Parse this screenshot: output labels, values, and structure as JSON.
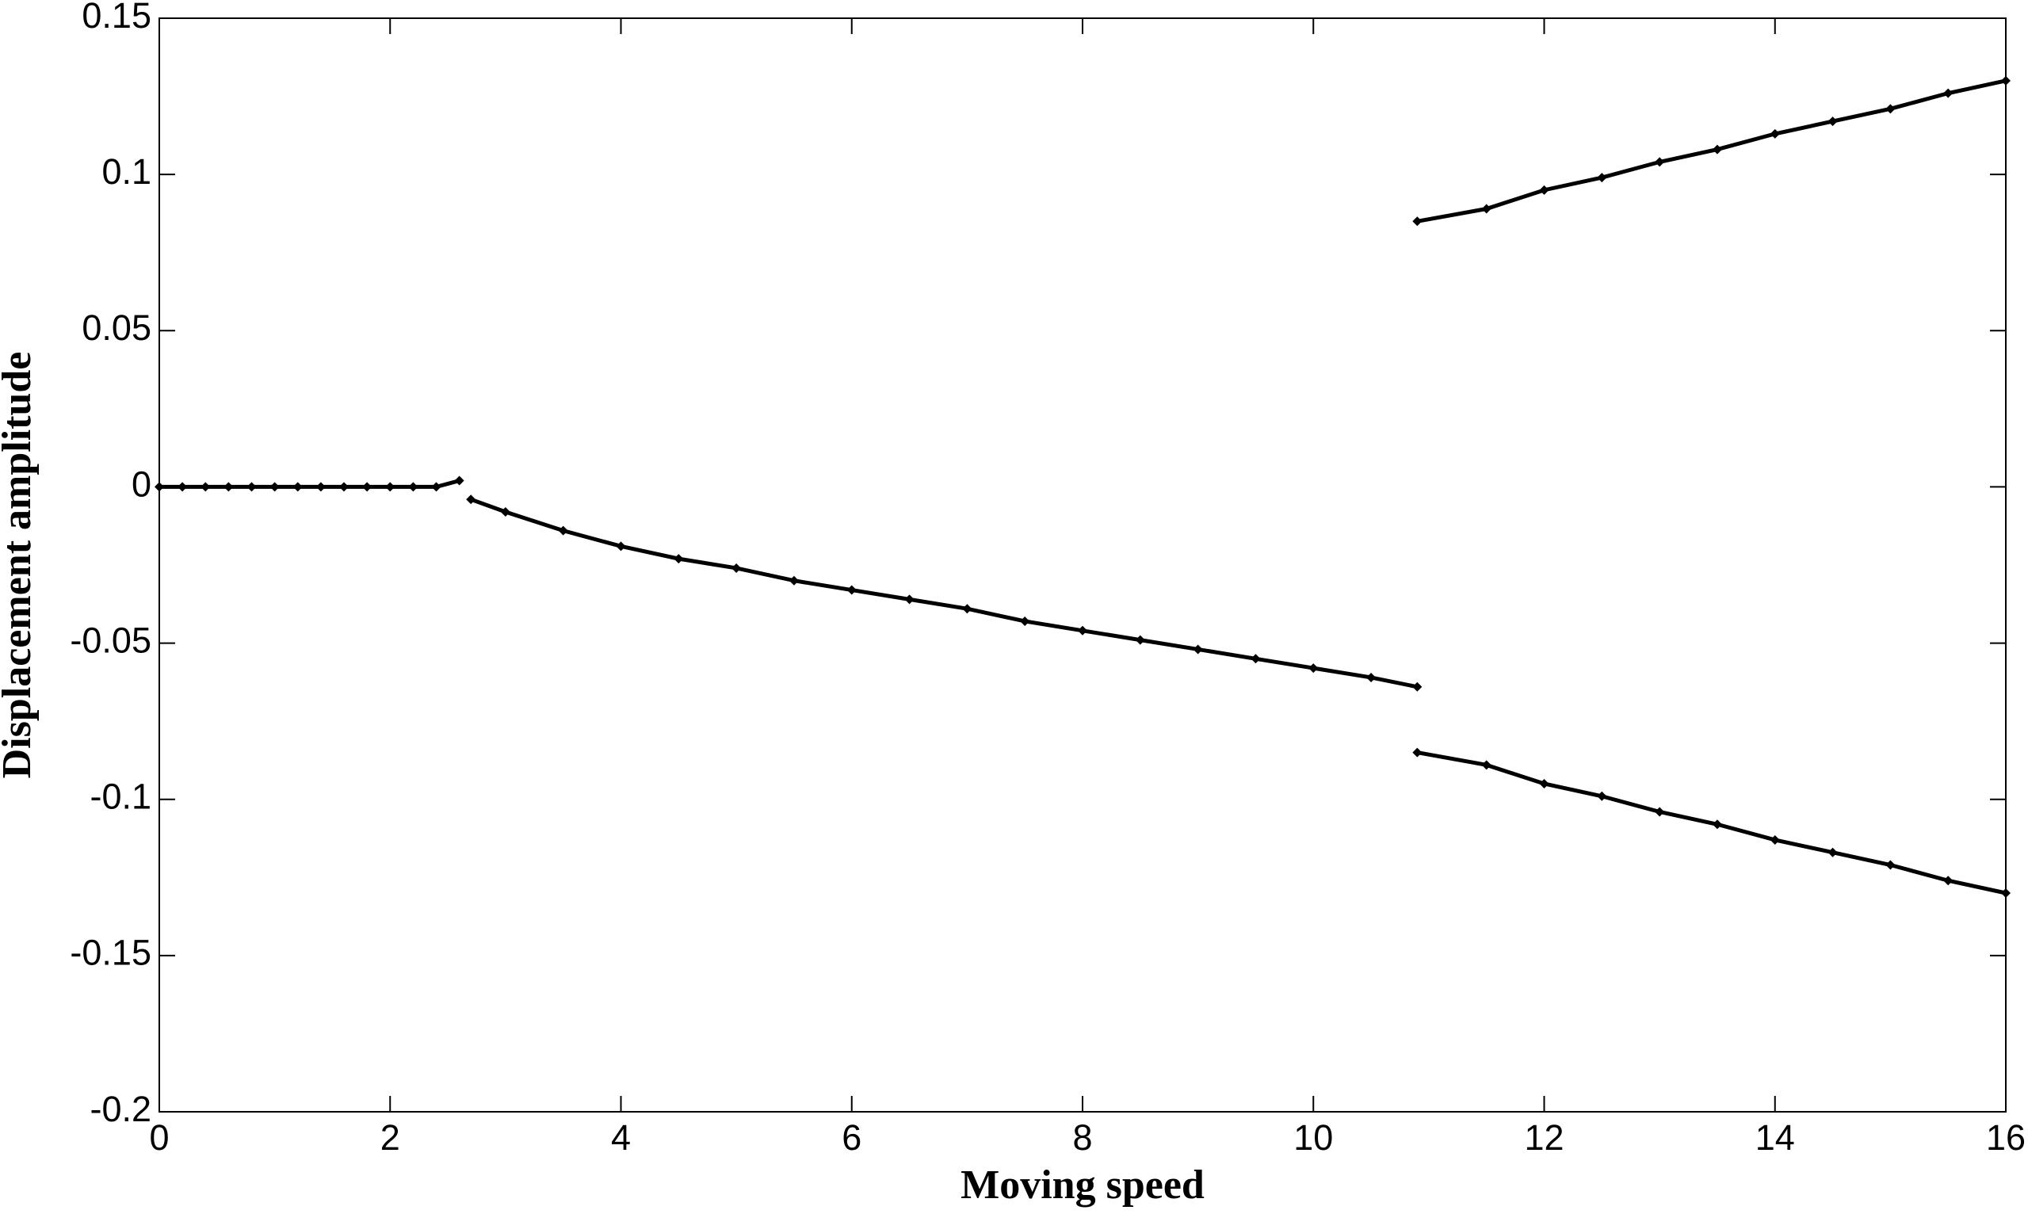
{
  "chart_data": {
    "type": "line",
    "xlabel": "Moving speed",
    "ylabel": "Displacement amplitude",
    "xlim": [
      0,
      16
    ],
    "xticks": [
      0,
      2,
      4,
      6,
      8,
      10,
      12,
      14,
      16
    ],
    "ylim": [
      -0.2,
      0.15
    ],
    "yticks": [
      -0.2,
      -0.15,
      -0.1,
      -0.05,
      0,
      0.05,
      0.1,
      0.15
    ],
    "grid": false,
    "series": [
      {
        "color": "#000000",
        "x": [
          0,
          0.2,
          0.4,
          0.6,
          0.8,
          1.0,
          1.2,
          1.4,
          1.6,
          1.8,
          2.0,
          2.2,
          2.4,
          2.6
        ],
        "values": [
          0,
          0,
          0,
          0,
          0,
          0,
          0,
          0,
          0,
          0,
          0,
          0,
          0,
          0.002
        ]
      },
      {
        "color": "#000000",
        "x": [
          2.7,
          3.0,
          3.5,
          4,
          4.5,
          5,
          5.5,
          6,
          6.5,
          7,
          7.5,
          8,
          8.5,
          9,
          9.5,
          10,
          10.5,
          10.9
        ],
        "values": [
          -0.004,
          -0.008,
          -0.014,
          -0.019,
          -0.023,
          -0.026,
          -0.03,
          -0.033,
          -0.036,
          -0.039,
          -0.043,
          -0.046,
          -0.049,
          -0.052,
          -0.055,
          -0.058,
          -0.061,
          -0.064
        ]
      },
      {
        "color": "#000000",
        "x": [
          10.9,
          11.5,
          12,
          12.5,
          13,
          13.5,
          14,
          14.5,
          15,
          15.5,
          16
        ],
        "values": [
          0.085,
          0.089,
          0.095,
          0.099,
          0.104,
          0.108,
          0.113,
          0.117,
          0.121,
          0.126,
          0.13
        ]
      },
      {
        "color": "#000000",
        "x": [
          10.9,
          11.5,
          12,
          12.5,
          13,
          13.5,
          14,
          14.5,
          15,
          15.5,
          16
        ],
        "values": [
          -0.085,
          -0.089,
          -0.095,
          -0.099,
          -0.104,
          -0.108,
          -0.113,
          -0.117,
          -0.121,
          -0.126,
          -0.13
        ]
      }
    ]
  }
}
